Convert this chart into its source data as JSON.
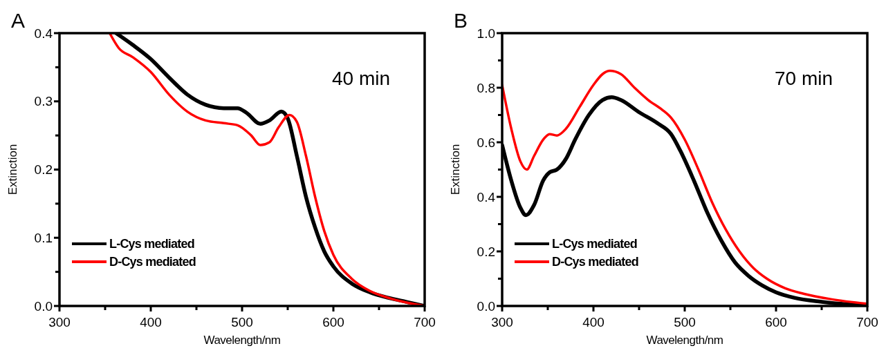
{
  "chart_data": [
    {
      "type": "line",
      "title": "A",
      "xlabel": "Wavelength/nm",
      "ylabel": "Extinction",
      "annotations": [
        "40 min"
      ],
      "xlim": [
        300,
        700
      ],
      "xticks": [
        300,
        {
          "value": 350,
          "label": null
        },
        400,
        {
          "value": 450,
          "label": null
        },
        500,
        {
          "value": 550,
          "label": null
        },
        600,
        {
          "value": 650,
          "label": null
        },
        700
      ],
      "ylim": [
        0,
        0.4
      ],
      "yticks": [
        {
          "value": 0,
          "label": "0.0"
        },
        {
          "value": 0.05,
          "label": null
        },
        0.1,
        {
          "value": 0.15,
          "label": null
        },
        0.2,
        {
          "value": 0.25,
          "label": null
        },
        0.3,
        {
          "value": 0.35,
          "label": null
        },
        0.4
      ],
      "legend": "bottom left",
      "grid": false,
      "line_style": "solid",
      "series": [
        {
          "name": "L-Cys mediated",
          "color": "#000000",
          "x": [
            362,
            380,
            400,
            420,
            440,
            460,
            480,
            495,
            505,
            520,
            530,
            543,
            550,
            560,
            570,
            580,
            590,
            600,
            620,
            640,
            660,
            680,
            700
          ],
          "values": [
            0.4,
            0.383,
            0.362,
            0.335,
            0.31,
            0.295,
            0.29,
            0.29,
            0.283,
            0.267,
            0.272,
            0.285,
            0.275,
            0.22,
            0.16,
            0.115,
            0.08,
            0.058,
            0.033,
            0.02,
            0.012,
            0.006,
            0
          ]
        },
        {
          "name": "D-Cys mediated",
          "color": "#ff0000",
          "x": [
            355,
            365,
            380,
            400,
            420,
            440,
            460,
            480,
            495,
            510,
            520,
            530,
            540,
            552,
            560,
            570,
            580,
            590,
            600,
            620,
            640,
            660,
            680,
            700
          ],
          "values": [
            0.4,
            0.378,
            0.365,
            0.343,
            0.31,
            0.285,
            0.272,
            0.268,
            0.265,
            0.25,
            0.236,
            0.24,
            0.262,
            0.28,
            0.27,
            0.22,
            0.16,
            0.11,
            0.075,
            0.04,
            0.022,
            0.012,
            0.005,
            0
          ]
        }
      ]
    },
    {
      "type": "line",
      "title": "B",
      "xlabel": "Wavelength/nm",
      "ylabel": "Extinction",
      "annotations": [
        "70 min"
      ],
      "xlim": [
        300,
        700
      ],
      "xticks": [
        300,
        {
          "value": 350,
          "label": null
        },
        400,
        {
          "value": 450,
          "label": null
        },
        500,
        {
          "value": 550,
          "label": null
        },
        600,
        {
          "value": 650,
          "label": null
        },
        700
      ],
      "ylim": [
        0,
        1
      ],
      "yticks": [
        {
          "value": 0,
          "label": "0.0"
        },
        {
          "value": 0.1,
          "label": null
        },
        0.2,
        {
          "value": 0.3,
          "label": null
        },
        0.4,
        {
          "value": 0.5,
          "label": null
        },
        0.6,
        {
          "value": 0.7,
          "label": null
        },
        0.8,
        {
          "value": 0.9,
          "label": null
        },
        {
          "value": 1,
          "label": "1.0"
        }
      ],
      "legend": "bottom left",
      "grid": false,
      "line_style": "solid",
      "series": [
        {
          "name": "L-Cys mediated",
          "color": "#000000",
          "x": [
            300,
            310,
            320,
            326,
            335,
            345,
            352,
            360,
            370,
            380,
            395,
            410,
            420,
            430,
            450,
            470,
            485,
            495,
            510,
            525,
            540,
            555,
            570,
            585,
            600,
            620,
            650,
            700
          ],
          "values": [
            0.59,
            0.46,
            0.36,
            0.333,
            0.37,
            0.46,
            0.49,
            0.5,
            0.54,
            0.61,
            0.7,
            0.755,
            0.765,
            0.755,
            0.71,
            0.67,
            0.63,
            0.57,
            0.46,
            0.34,
            0.24,
            0.16,
            0.11,
            0.075,
            0.05,
            0.03,
            0.015,
            0
          ]
        },
        {
          "name": "D-Cys mediated",
          "color": "#ff0000",
          "x": [
            300,
            310,
            320,
            327,
            335,
            345,
            352,
            360,
            370,
            385,
            400,
            410,
            418,
            430,
            445,
            460,
            475,
            485,
            500,
            515,
            530,
            545,
            560,
            575,
            590,
            610,
            630,
            660,
            700
          ],
          "values": [
            0.81,
            0.65,
            0.53,
            0.5,
            0.55,
            0.61,
            0.63,
            0.625,
            0.65,
            0.73,
            0.81,
            0.85,
            0.862,
            0.85,
            0.8,
            0.755,
            0.72,
            0.69,
            0.61,
            0.5,
            0.38,
            0.28,
            0.2,
            0.14,
            0.1,
            0.065,
            0.045,
            0.025,
            0.008
          ]
        }
      ]
    }
  ]
}
